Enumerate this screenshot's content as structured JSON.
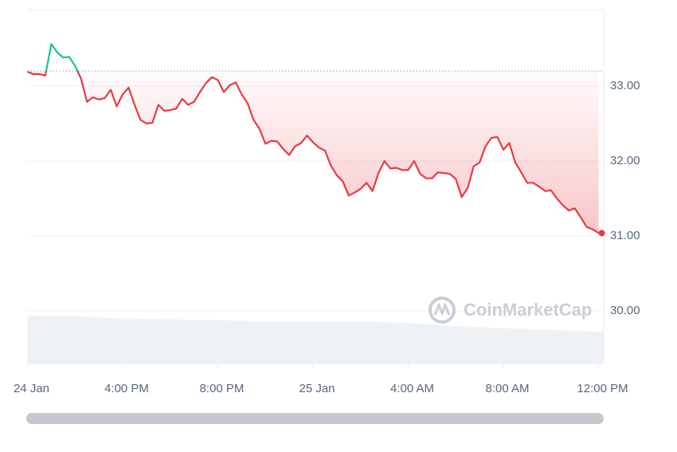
{
  "chart_data": {
    "type": "line",
    "x": [
      0,
      0.25,
      0.5,
      0.75,
      1,
      1.25,
      1.5,
      1.75,
      2,
      2.25,
      2.5,
      2.75,
      3,
      3.25,
      3.5,
      3.75,
      4,
      4.25,
      4.5,
      4.75,
      5,
      5.25,
      5.5,
      5.75,
      6,
      6.25,
      6.5,
      6.75,
      7,
      7.25,
      7.5,
      7.75,
      8,
      8.25,
      8.5,
      8.75,
      9,
      9.25,
      9.5,
      9.75,
      10,
      10.25,
      10.5,
      10.75,
      11,
      11.25,
      11.5,
      11.75,
      12,
      12.25,
      12.5,
      12.75,
      13,
      13.25,
      13.5,
      13.75,
      14,
      14.25,
      14.5,
      14.75,
      15,
      15.25,
      15.5,
      15.75,
      16,
      16.25,
      16.5,
      16.75,
      17,
      17.25,
      17.5,
      17.75,
      18,
      18.25,
      18.5,
      18.75,
      19,
      19.25,
      19.5,
      19.75,
      20,
      20.25,
      20.5,
      20.75,
      21,
      21.25,
      21.5,
      21.75,
      22,
      22.25,
      22.5,
      22.75,
      23,
      23.25,
      23.5,
      23.75,
      24
    ],
    "series": [
      {
        "color_up": "#16c784",
        "color": "#ea3943",
        "values": [
          33.19,
          33.16,
          33.16,
          33.14,
          33.56,
          33.45,
          33.38,
          33.39,
          33.27,
          33.1,
          32.79,
          32.85,
          32.82,
          32.84,
          32.95,
          32.73,
          32.89,
          32.98,
          32.75,
          32.55,
          32.5,
          32.51,
          32.75,
          32.67,
          32.68,
          32.7,
          32.83,
          32.75,
          32.79,
          32.92,
          33.04,
          33.12,
          33.08,
          32.92,
          33.01,
          33.05,
          32.89,
          32.77,
          32.55,
          32.43,
          32.23,
          32.27,
          32.26,
          32.16,
          32.08,
          32.2,
          32.24,
          32.34,
          32.25,
          32.18,
          32.14,
          31.94,
          31.81,
          31.73,
          31.54,
          31.58,
          31.63,
          31.71,
          31.6,
          31.84,
          32.0,
          31.9,
          31.91,
          31.88,
          31.88,
          32.0,
          31.83,
          31.77,
          31.77,
          31.85,
          31.84,
          31.83,
          31.76,
          31.52,
          31.64,
          31.93,
          31.98,
          32.2,
          32.31,
          32.32,
          32.15,
          32.24,
          31.98,
          31.85,
          31.71,
          31.71,
          31.66,
          31.6,
          31.61,
          31.5,
          31.41,
          31.34,
          31.37,
          31.25,
          31.12,
          31.09,
          31.04
        ]
      }
    ],
    "baseline": 33.2,
    "volume": {
      "color": "#eff2f5",
      "x": [
        0,
        2,
        4,
        6,
        8,
        10,
        12,
        14,
        16,
        18,
        20,
        22,
        24.2
      ],
      "values": [
        29.94,
        29.93,
        29.9,
        29.89,
        29.88,
        29.86,
        29.86,
        29.86,
        29.84,
        29.8,
        29.77,
        29.75,
        29.72
      ]
    },
    "xlim": [
      0,
      24.2
    ],
    "xticks": [
      {
        "value": 0,
        "label": "24 Jan"
      },
      {
        "value": 4,
        "label": "4:00 PM"
      },
      {
        "value": 8,
        "label": "8:00 PM"
      },
      {
        "value": 12,
        "label": "25 Jan"
      },
      {
        "value": 16,
        "label": "4:00 AM"
      },
      {
        "value": 20,
        "label": "8:00 AM"
      },
      {
        "value": 24,
        "label": "12:00 PM"
      }
    ],
    "ylim": [
      29.29,
      34.02
    ],
    "yticks": [
      {
        "value": 30,
        "label": "30.00"
      },
      {
        "value": 31,
        "label": "31.00"
      },
      {
        "value": 32,
        "label": "32.00"
      },
      {
        "value": 33,
        "label": "33.00"
      }
    ],
    "grid": true,
    "watermark": "CoinMarketCap"
  }
}
